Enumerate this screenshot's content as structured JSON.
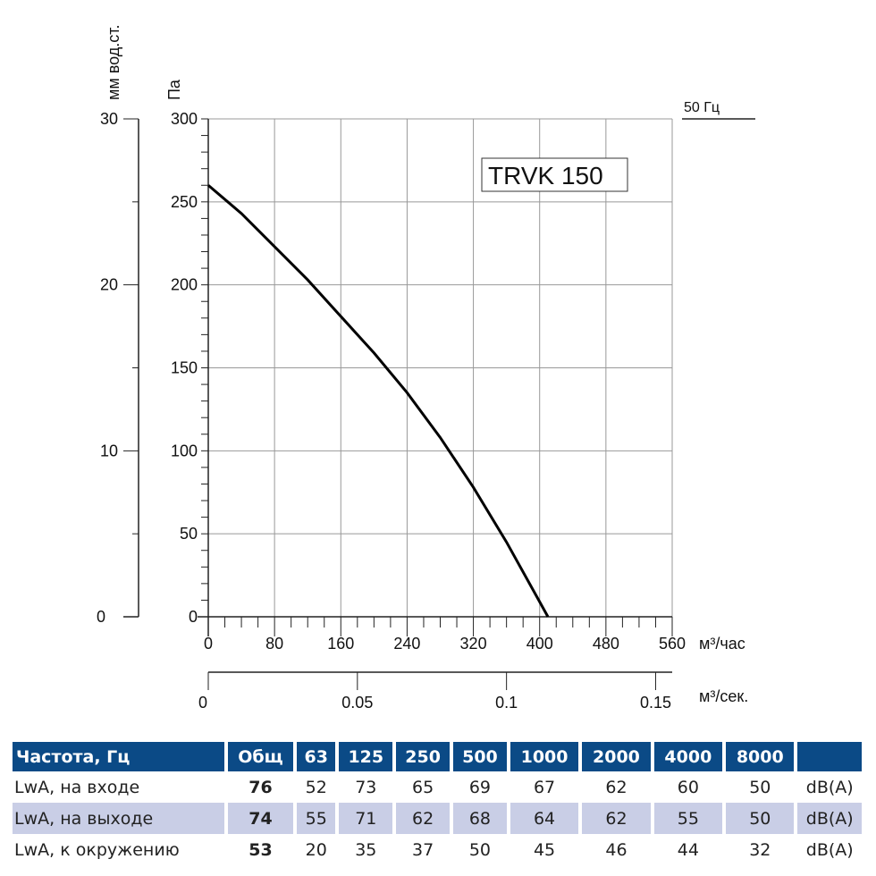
{
  "chart_data": {
    "type": "line",
    "title": "TRVK 150",
    "legend": "50 Гц",
    "xlabel": "м³/час",
    "xlabel_secondary": "м³/сек.",
    "ylabel": "Па",
    "ylabel_secondary": "мм вод.ст.",
    "xlim": [
      0,
      560
    ],
    "ylim": [
      0,
      300
    ],
    "ylim_secondary": [
      0,
      30
    ],
    "grid": true,
    "x_ticks": [
      "0",
      "80",
      "160",
      "240",
      "320",
      "400",
      "480",
      "560"
    ],
    "y_ticks": [
      "0",
      "50",
      "100",
      "150",
      "200",
      "250",
      "300"
    ],
    "y_ticks_secondary": [
      "0",
      "10",
      "20",
      "30"
    ],
    "x_ticks_secondary": [
      "0",
      "0.05",
      "0.1",
      "0.15"
    ],
    "series": [
      {
        "x": [
          0,
          40,
          80,
          120,
          160,
          200,
          240,
          280,
          320,
          360,
          400,
          410
        ],
        "y": [
          260,
          243,
          223,
          203,
          181,
          159,
          135,
          108,
          78,
          45,
          9,
          0
        ]
      }
    ]
  },
  "table": {
    "headers": [
      "Частота, Гц",
      "Общ",
      "63",
      "125",
      "250",
      "500",
      "1000",
      "2000",
      "4000",
      "8000",
      ""
    ],
    "rows": [
      {
        "label": "LwA, на входе",
        "total": "76",
        "values": [
          "52",
          "73",
          "65",
          "69",
          "67",
          "62",
          "60",
          "50"
        ],
        "unit": "dB(A)"
      },
      {
        "label": "LwA, на выходе",
        "total": "74",
        "values": [
          "55",
          "71",
          "62",
          "68",
          "64",
          "62",
          "55",
          "50"
        ],
        "unit": "dB(A)"
      },
      {
        "label": "LwA, к окружению",
        "total": "53",
        "values": [
          "20",
          "35",
          "37",
          "50",
          "45",
          "46",
          "44",
          "32"
        ],
        "unit": "dB(A)"
      }
    ]
  }
}
